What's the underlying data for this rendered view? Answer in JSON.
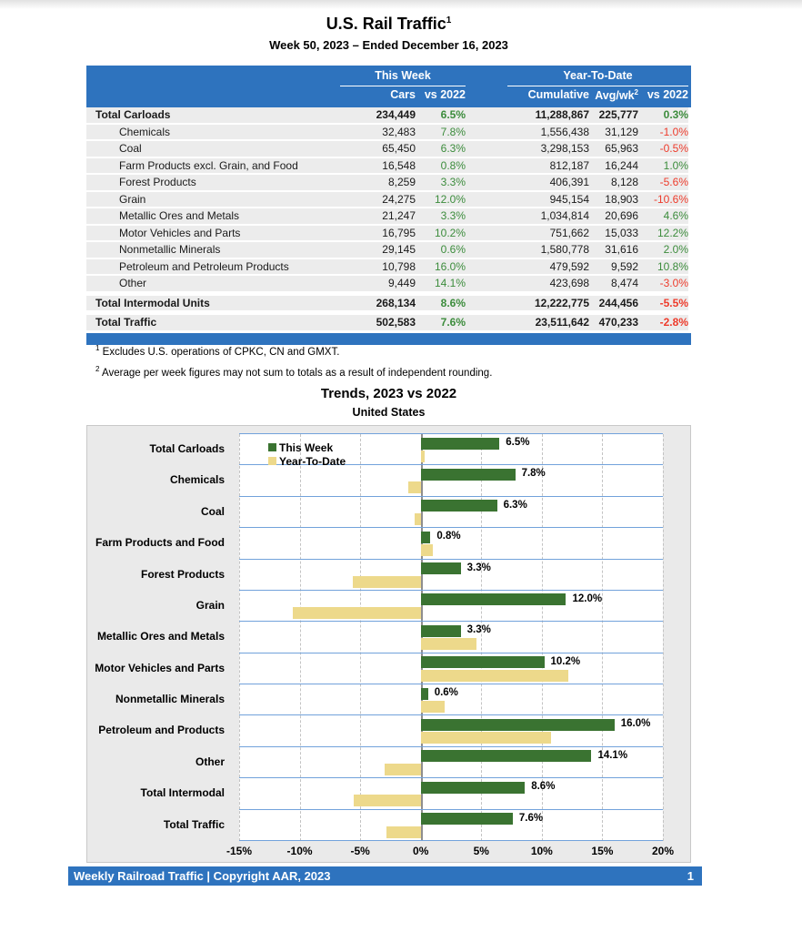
{
  "page": {
    "title": "U.S. Rail Traffic",
    "title_sup": "1",
    "subtitle": "Week 50, 2023 – Ended December 16, 2023"
  },
  "table": {
    "groups": {
      "this_week": "This Week",
      "year_to_date": "Year-To-Date"
    },
    "columns": {
      "cars": "Cars",
      "cars_vs": "vs 2022",
      "cumulative": "Cumulative",
      "avg_wk": "Avg/wk",
      "avg_wk_sup": "2",
      "ytd_vs": "vs 2022"
    },
    "rows": [
      {
        "label": "Total Carloads",
        "bold": true,
        "indent": false,
        "gap": false,
        "cars": "234,449",
        "cars_vs": "6.5%",
        "cars_vs_dir": "pos",
        "cumulative": "11,288,867",
        "avg_wk": "225,777",
        "ytd_vs": "0.3%",
        "ytd_vs_dir": "pos"
      },
      {
        "label": "Chemicals",
        "bold": false,
        "indent": true,
        "gap": false,
        "cars": "32,483",
        "cars_vs": "7.8%",
        "cars_vs_dir": "pos",
        "cumulative": "1,556,438",
        "avg_wk": "31,129",
        "ytd_vs": "-1.0%",
        "ytd_vs_dir": "neg"
      },
      {
        "label": "Coal",
        "bold": false,
        "indent": true,
        "gap": false,
        "cars": "65,450",
        "cars_vs": "6.3%",
        "cars_vs_dir": "pos",
        "cumulative": "3,298,153",
        "avg_wk": "65,963",
        "ytd_vs": "-0.5%",
        "ytd_vs_dir": "neg"
      },
      {
        "label": "Farm Products excl. Grain, and Food",
        "bold": false,
        "indent": true,
        "gap": false,
        "cars": "16,548",
        "cars_vs": "0.8%",
        "cars_vs_dir": "pos",
        "cumulative": "812,187",
        "avg_wk": "16,244",
        "ytd_vs": "1.0%",
        "ytd_vs_dir": "pos"
      },
      {
        "label": "Forest Products",
        "bold": false,
        "indent": true,
        "gap": false,
        "cars": "8,259",
        "cars_vs": "3.3%",
        "cars_vs_dir": "pos",
        "cumulative": "406,391",
        "avg_wk": "8,128",
        "ytd_vs": "-5.6%",
        "ytd_vs_dir": "neg"
      },
      {
        "label": "Grain",
        "bold": false,
        "indent": true,
        "gap": false,
        "cars": "24,275",
        "cars_vs": "12.0%",
        "cars_vs_dir": "pos",
        "cumulative": "945,154",
        "avg_wk": "18,903",
        "ytd_vs": "-10.6%",
        "ytd_vs_dir": "neg"
      },
      {
        "label": "Metallic Ores and Metals",
        "bold": false,
        "indent": true,
        "gap": false,
        "cars": "21,247",
        "cars_vs": "3.3%",
        "cars_vs_dir": "pos",
        "cumulative": "1,034,814",
        "avg_wk": "20,696",
        "ytd_vs": "4.6%",
        "ytd_vs_dir": "pos"
      },
      {
        "label": "Motor Vehicles and Parts",
        "bold": false,
        "indent": true,
        "gap": false,
        "cars": "16,795",
        "cars_vs": "10.2%",
        "cars_vs_dir": "pos",
        "cumulative": "751,662",
        "avg_wk": "15,033",
        "ytd_vs": "12.2%",
        "ytd_vs_dir": "pos"
      },
      {
        "label": "Nonmetallic Minerals",
        "bold": false,
        "indent": true,
        "gap": false,
        "cars": "29,145",
        "cars_vs": "0.6%",
        "cars_vs_dir": "pos",
        "cumulative": "1,580,778",
        "avg_wk": "31,616",
        "ytd_vs": "2.0%",
        "ytd_vs_dir": "pos"
      },
      {
        "label": "Petroleum and Petroleum Products",
        "bold": false,
        "indent": true,
        "gap": false,
        "cars": "10,798",
        "cars_vs": "16.0%",
        "cars_vs_dir": "pos",
        "cumulative": "479,592",
        "avg_wk": "9,592",
        "ytd_vs": "10.8%",
        "ytd_vs_dir": "pos"
      },
      {
        "label": "Other",
        "bold": false,
        "indent": true,
        "gap": false,
        "cars": "9,449",
        "cars_vs": "14.1%",
        "cars_vs_dir": "pos",
        "cumulative": "423,698",
        "avg_wk": "8,474",
        "ytd_vs": "-3.0%",
        "ytd_vs_dir": "neg"
      },
      {
        "label": "Total Intermodal Units",
        "bold": true,
        "indent": false,
        "gap": true,
        "cars": "268,134",
        "cars_vs": "8.6%",
        "cars_vs_dir": "pos",
        "cumulative": "12,222,775",
        "avg_wk": "244,456",
        "ytd_vs": "-5.5%",
        "ytd_vs_dir": "neg"
      },
      {
        "label": "Total Traffic",
        "bold": true,
        "indent": false,
        "gap": true,
        "cars": "502,583",
        "cars_vs": "7.6%",
        "cars_vs_dir": "pos",
        "cumulative": "23,511,642",
        "avg_wk": "470,233",
        "ytd_vs": "-2.8%",
        "ytd_vs_dir": "neg"
      }
    ]
  },
  "footnotes": [
    {
      "sup": "1",
      "text": "Excludes U.S. operations of CPKC, CN and GMXT."
    },
    {
      "sup": "2",
      "text": "Average per week figures may not sum to totals as a result of independent rounding."
    }
  ],
  "chart_data": {
    "type": "bar",
    "orientation": "horizontal",
    "title": "Trends, 2023 vs 2022",
    "subtitle": "United States",
    "categories": [
      "Total Carloads",
      "Chemicals",
      "Coal",
      "Farm Products and Food",
      "Forest Products",
      "Grain",
      "Metallic Ores and Metals",
      "Motor Vehicles and Parts",
      "Nonmetallic Minerals",
      "Petroleum and Products",
      "Other",
      "Total Intermodal",
      "Total Traffic"
    ],
    "series": [
      {
        "name": "This Week",
        "color": "#3A7331",
        "values": [
          6.5,
          7.8,
          6.3,
          0.8,
          3.3,
          12.0,
          3.3,
          10.2,
          0.6,
          16.0,
          14.1,
          8.6,
          7.6
        ],
        "labels": [
          "6.5%",
          "7.8%",
          "6.3%",
          "0.8%",
          "3.3%",
          "12.0%",
          "3.3%",
          "10.2%",
          "0.6%",
          "16.0%",
          "14.1%",
          "8.6%",
          "7.6%"
        ]
      },
      {
        "name": "Year-To-Date",
        "color": "#EDD98B",
        "values": [
          0.3,
          -1.0,
          -0.5,
          1.0,
          -5.6,
          -10.6,
          4.6,
          12.2,
          2.0,
          10.8,
          -3.0,
          -5.5,
          -2.8
        ]
      }
    ],
    "xlim": [
      -15,
      20
    ],
    "x_tick_values": [
      -15,
      -10,
      -5,
      0,
      5,
      10,
      15,
      20
    ],
    "x_tick_labels": [
      "-15%",
      "-10%",
      "-5%",
      "0%",
      "5%",
      "10%",
      "15%",
      "20%"
    ],
    "grid": true,
    "legend_position": "top-left"
  },
  "footer": {
    "text": "Weekly Railroad Traffic | Copyright AAR, 2023",
    "page_number": "1"
  },
  "colors": {
    "header_blue": "#2E73BE",
    "positive_green": "#3C8C3C",
    "negative_red": "#EE3B2B",
    "bar_green": "#3A7331",
    "bar_yellow": "#EDD98B",
    "row_gray": "#ECECEC",
    "row_separator_blue": "#72A2DB"
  }
}
